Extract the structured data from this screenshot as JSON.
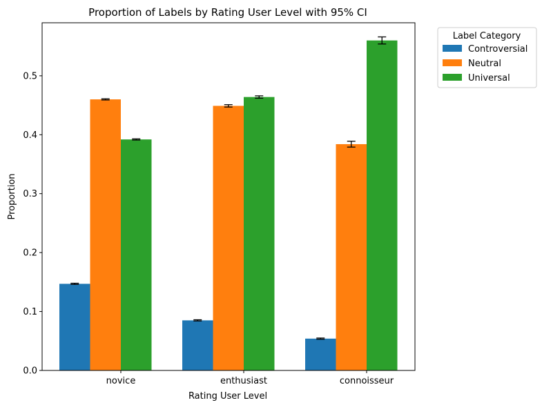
{
  "chart_data": {
    "type": "bar",
    "title": "Proportion of Labels by Rating User Level with 95% CI",
    "xlabel": "Rating User Level",
    "ylabel": "Proportion",
    "categories": [
      "novice",
      "enthusiast",
      "connoisseur"
    ],
    "series": [
      {
        "name": "Controversial",
        "color": "#1f77b4",
        "values": [
          0.147,
          0.085,
          0.054
        ],
        "ci": [
          0.001,
          0.001,
          0.001
        ]
      },
      {
        "name": "Neutral",
        "color": "#ff7f0e",
        "values": [
          0.46,
          0.449,
          0.384
        ],
        "ci": [
          0.001,
          0.002,
          0.005
        ]
      },
      {
        "name": "Universal",
        "color": "#2ca02c",
        "values": [
          0.392,
          0.464,
          0.56
        ],
        "ci": [
          0.001,
          0.002,
          0.006
        ]
      }
    ],
    "ylim": [
      0,
      0.59
    ],
    "yticks": [
      "0.0",
      "0.1",
      "0.2",
      "0.3",
      "0.4",
      "0.5"
    ],
    "legend": {
      "title": "Label Category",
      "position": "outside-top-right"
    },
    "grid": false
  }
}
